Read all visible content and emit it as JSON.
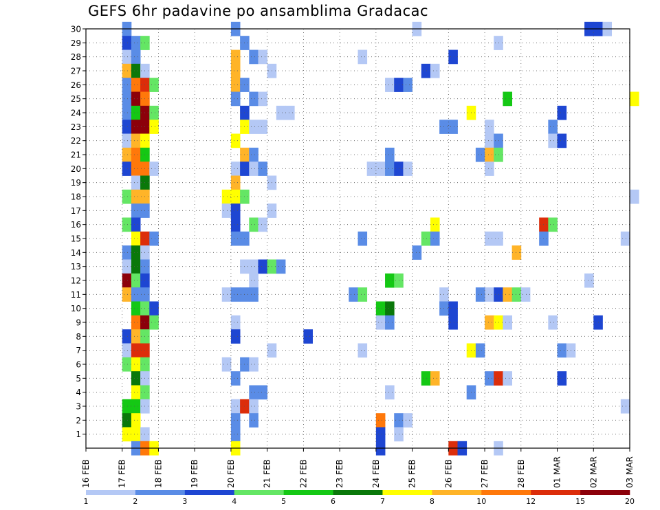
{
  "chart_data": {
    "type": "heatmap",
    "title": "GEFS 6hr padavine po ansamblima Gradacac",
    "xlabel": "",
    "ylabel": "",
    "x_tick_labels": [
      "16 FEB",
      "17 FEB",
      "18 FEB",
      "19 FEB",
      "20 FEB",
      "21 FEB",
      "22 FEB",
      "23 FEB",
      "24 FEB",
      "25 FEB",
      "26 FEB",
      "27 FEB",
      "28 FEB",
      "01 MAR",
      "02 MAR",
      "03 MAR"
    ],
    "x_range_days": [
      0,
      15
    ],
    "y_tick_labels": [
      "1",
      "2",
      "3",
      "4",
      "5",
      "6",
      "7",
      "8",
      "9",
      "10",
      "11",
      "12",
      "13",
      "14",
      "15",
      "16",
      "17",
      "18",
      "19",
      "20",
      "21",
      "22",
      "23",
      "24",
      "25",
      "26",
      "27",
      "28",
      "29",
      "30"
    ],
    "y_range_members": [
      0,
      30
    ],
    "grid": true,
    "colorbar": {
      "labels": [
        "1",
        "2",
        "3",
        "4",
        "5",
        "6",
        "7",
        "8",
        "10",
        "12",
        "15",
        "20"
      ],
      "colors": [
        "#b4c8f5",
        "#5a8ce6",
        "#1e46d2",
        "#64e664",
        "#14c814",
        "#0a780a",
        "#ffff00",
        "#ffb428",
        "#ff780a",
        "#dc2d0a",
        "#8c000a"
      ]
    },
    "cells": [
      [
        1.0,
        30,
        1
      ],
      [
        1.0,
        29,
        2
      ],
      [
        1.25,
        29,
        1
      ],
      [
        1.5,
        29,
        3
      ],
      [
        1.0,
        28,
        0
      ],
      [
        1.25,
        28,
        1
      ],
      [
        1.0,
        27,
        7
      ],
      [
        1.25,
        27,
        5
      ],
      [
        1.5,
        27,
        0
      ],
      [
        1.0,
        26,
        1
      ],
      [
        1.25,
        26,
        8
      ],
      [
        1.5,
        26,
        9
      ],
      [
        1.75,
        26,
        3
      ],
      [
        1.0,
        25,
        1
      ],
      [
        1.25,
        25,
        10
      ],
      [
        1.5,
        25,
        8
      ],
      [
        1.0,
        24,
        1
      ],
      [
        1.25,
        24,
        4
      ],
      [
        1.5,
        24,
        10
      ],
      [
        1.75,
        24,
        3
      ],
      [
        1.0,
        23,
        2
      ],
      [
        1.25,
        23,
        10
      ],
      [
        1.5,
        23,
        10
      ],
      [
        1.75,
        23,
        6
      ],
      [
        1.0,
        22,
        0
      ],
      [
        1.25,
        22,
        7
      ],
      [
        1.5,
        22,
        6
      ],
      [
        1.0,
        21,
        7
      ],
      [
        1.25,
        21,
        8
      ],
      [
        1.5,
        21,
        4
      ],
      [
        1.0,
        20,
        2
      ],
      [
        1.25,
        20,
        8
      ],
      [
        1.5,
        20,
        8
      ],
      [
        1.75,
        20,
        0
      ],
      [
        1.25,
        19,
        0
      ],
      [
        1.5,
        19,
        5
      ],
      [
        1.0,
        18,
        3
      ],
      [
        1.25,
        18,
        7
      ],
      [
        1.5,
        18,
        7
      ],
      [
        1.25,
        17,
        1
      ],
      [
        1.5,
        17,
        1
      ],
      [
        1.0,
        16,
        3
      ],
      [
        1.25,
        16,
        2
      ],
      [
        1.25,
        15,
        6
      ],
      [
        1.5,
        15,
        9
      ],
      [
        1.75,
        15,
        1
      ],
      [
        1.0,
        14,
        1
      ],
      [
        1.25,
        14,
        5
      ],
      [
        1.5,
        14,
        0
      ],
      [
        1.0,
        13,
        0
      ],
      [
        1.25,
        13,
        5
      ],
      [
        1.5,
        13,
        1
      ],
      [
        1.0,
        12,
        10
      ],
      [
        1.25,
        12,
        3
      ],
      [
        1.5,
        12,
        2
      ],
      [
        1.0,
        11,
        7
      ],
      [
        1.25,
        11,
        1
      ],
      [
        1.5,
        11,
        1
      ],
      [
        1.25,
        10,
        4
      ],
      [
        1.5,
        10,
        3
      ],
      [
        1.75,
        10,
        2
      ],
      [
        1.25,
        9,
        8
      ],
      [
        1.5,
        9,
        10
      ],
      [
        1.75,
        9,
        3
      ],
      [
        1.0,
        8,
        2
      ],
      [
        1.25,
        8,
        7
      ],
      [
        1.5,
        8,
        3
      ],
      [
        1.0,
        7,
        0
      ],
      [
        1.25,
        7,
        9
      ],
      [
        1.5,
        7,
        9
      ],
      [
        1.0,
        6,
        3
      ],
      [
        1.25,
        6,
        6
      ],
      [
        1.5,
        6,
        3
      ],
      [
        1.25,
        5,
        5
      ],
      [
        1.5,
        5,
        0
      ],
      [
        1.25,
        4,
        6
      ],
      [
        1.5,
        4,
        3
      ],
      [
        1.0,
        3,
        4
      ],
      [
        1.25,
        3,
        4
      ],
      [
        1.5,
        3,
        0
      ],
      [
        1.0,
        2,
        5
      ],
      [
        1.25,
        2,
        6
      ],
      [
        1.0,
        1,
        6
      ],
      [
        1.25,
        1,
        6
      ],
      [
        1.5,
        1,
        0
      ],
      [
        1.25,
        0,
        1
      ],
      [
        1.5,
        0,
        8
      ],
      [
        1.75,
        0,
        6
      ],
      [
        4.0,
        30,
        1
      ],
      [
        4.25,
        29,
        1
      ],
      [
        4.0,
        28,
        7
      ],
      [
        4.5,
        28,
        1
      ],
      [
        4.75,
        28,
        0
      ],
      [
        4.0,
        27,
        7
      ],
      [
        5.0,
        27,
        0
      ],
      [
        4.0,
        26,
        7
      ],
      [
        4.25,
        26,
        1
      ],
      [
        4.0,
        25,
        1
      ],
      [
        4.5,
        25,
        1
      ],
      [
        4.75,
        25,
        0
      ],
      [
        4.25,
        24,
        2
      ],
      [
        5.25,
        24,
        0
      ],
      [
        5.5,
        24,
        0
      ],
      [
        4.25,
        23,
        6
      ],
      [
        4.5,
        23,
        0
      ],
      [
        4.75,
        23,
        0
      ],
      [
        4.0,
        22,
        6
      ],
      [
        4.25,
        21,
        7
      ],
      [
        4.5,
        21,
        1
      ],
      [
        4.0,
        20,
        0
      ],
      [
        4.25,
        20,
        2
      ],
      [
        4.5,
        20,
        0
      ],
      [
        4.75,
        20,
        1
      ],
      [
        4.0,
        19,
        7
      ],
      [
        5.0,
        19,
        0
      ],
      [
        3.75,
        18,
        6
      ],
      [
        4.0,
        18,
        6
      ],
      [
        4.25,
        18,
        3
      ],
      [
        3.75,
        17,
        0
      ],
      [
        4.0,
        17,
        2
      ],
      [
        5.0,
        17,
        0
      ],
      [
        4.0,
        16,
        2
      ],
      [
        4.5,
        16,
        3
      ],
      [
        4.75,
        16,
        0
      ],
      [
        4.0,
        15,
        1
      ],
      [
        4.25,
        15,
        1
      ],
      [
        4.25,
        13,
        0
      ],
      [
        4.5,
        13,
        0
      ],
      [
        4.75,
        13,
        2
      ],
      [
        5.0,
        13,
        3
      ],
      [
        5.25,
        13,
        1
      ],
      [
        4.5,
        12,
        0
      ],
      [
        3.75,
        11,
        0
      ],
      [
        4.0,
        11,
        1
      ],
      [
        4.25,
        11,
        1
      ],
      [
        4.5,
        11,
        1
      ],
      [
        4.0,
        9,
        0
      ],
      [
        4.0,
        8,
        2
      ],
      [
        5.0,
        7,
        0
      ],
      [
        3.75,
        6,
        0
      ],
      [
        4.25,
        6,
        1
      ],
      [
        4.5,
        6,
        0
      ],
      [
        4.0,
        5,
        1
      ],
      [
        4.5,
        4,
        1
      ],
      [
        4.75,
        4,
        1
      ],
      [
        4.0,
        3,
        0
      ],
      [
        4.25,
        3,
        9
      ],
      [
        4.5,
        3,
        0
      ],
      [
        4.0,
        2,
        1
      ],
      [
        4.5,
        2,
        1
      ],
      [
        4.0,
        1,
        1
      ],
      [
        4.0,
        0,
        6
      ],
      [
        9.0,
        30,
        0
      ],
      [
        7.5,
        28,
        0
      ],
      [
        8.25,
        26,
        0
      ],
      [
        8.5,
        26,
        2
      ],
      [
        8.75,
        26,
        1
      ],
      [
        7.75,
        20,
        0
      ],
      [
        8.0,
        20,
        0
      ],
      [
        8.25,
        20,
        1
      ],
      [
        8.5,
        20,
        2
      ],
      [
        8.75,
        20,
        0
      ],
      [
        8.25,
        21,
        1
      ],
      [
        7.5,
        15,
        1
      ],
      [
        7.25,
        11,
        1
      ],
      [
        7.5,
        11,
        3
      ],
      [
        8.25,
        12,
        4
      ],
      [
        8.5,
        12,
        3
      ],
      [
        8.0,
        10,
        4
      ],
      [
        8.25,
        10,
        5
      ],
      [
        8.0,
        9,
        0
      ],
      [
        8.25,
        9,
        1
      ],
      [
        6.0,
        8,
        2
      ],
      [
        7.5,
        7,
        0
      ],
      [
        8.25,
        4,
        0
      ],
      [
        8.0,
        2,
        8
      ],
      [
        8.5,
        2,
        1
      ],
      [
        8.75,
        2,
        0
      ],
      [
        8.0,
        1,
        2
      ],
      [
        8.5,
        1,
        0
      ],
      [
        8.0,
        0,
        2
      ],
      [
        10.0,
        28,
        2
      ],
      [
        9.25,
        27,
        2
      ],
      [
        9.5,
        27,
        0
      ],
      [
        10.5,
        24,
        6
      ],
      [
        9.75,
        23,
        1
      ],
      [
        10.0,
        23,
        1
      ],
      [
        9.5,
        16,
        6
      ],
      [
        9.25,
        15,
        3
      ],
      [
        9.5,
        15,
        1
      ],
      [
        9.0,
        14,
        1
      ],
      [
        9.75,
        11,
        0
      ],
      [
        9.75,
        10,
        1
      ],
      [
        10.0,
        10,
        2
      ],
      [
        10.0,
        9,
        2
      ],
      [
        9.25,
        5,
        4
      ],
      [
        9.5,
        5,
        7
      ],
      [
        10.5,
        7,
        6
      ],
      [
        10.75,
        7,
        1
      ],
      [
        10.5,
        4,
        1
      ],
      [
        10.0,
        0,
        9
      ],
      [
        10.25,
        0,
        2
      ],
      [
        11.25,
        29,
        0
      ],
      [
        11.5,
        25,
        4
      ],
      [
        11.0,
        23,
        0
      ],
      [
        11.0,
        22,
        0
      ],
      [
        11.25,
        22,
        1
      ],
      [
        10.75,
        21,
        1
      ],
      [
        11.0,
        21,
        7
      ],
      [
        11.25,
        21,
        3
      ],
      [
        11.0,
        20,
        0
      ],
      [
        11.0,
        15,
        0
      ],
      [
        11.25,
        15,
        0
      ],
      [
        11.75,
        14,
        7
      ],
      [
        11.0,
        11,
        0
      ],
      [
        10.75,
        11,
        1
      ],
      [
        11.25,
        11,
        2
      ],
      [
        11.5,
        11,
        7
      ],
      [
        11.75,
        11,
        3
      ],
      [
        12.0,
        11,
        0
      ],
      [
        11.0,
        9,
        7
      ],
      [
        11.25,
        9,
        6
      ],
      [
        11.5,
        9,
        0
      ],
      [
        11.0,
        5,
        1
      ],
      [
        11.25,
        5,
        9
      ],
      [
        11.5,
        5,
        0
      ],
      [
        11.25,
        0,
        0
      ],
      [
        13.0,
        24,
        2
      ],
      [
        12.75,
        23,
        1
      ],
      [
        12.75,
        22,
        0
      ],
      [
        13.0,
        22,
        2
      ],
      [
        12.5,
        16,
        9
      ],
      [
        12.75,
        16,
        3
      ],
      [
        12.5,
        15,
        1
      ],
      [
        12.75,
        9,
        0
      ],
      [
        13.0,
        7,
        1
      ],
      [
        13.25,
        7,
        0
      ],
      [
        13.0,
        5,
        2
      ],
      [
        13.75,
        12,
        0
      ],
      [
        13.75,
        30,
        2
      ],
      [
        14.0,
        30,
        2
      ],
      [
        14.25,
        30,
        0
      ],
      [
        14.0,
        9,
        2
      ],
      [
        15.0,
        25,
        6
      ],
      [
        15.0,
        18,
        0
      ],
      [
        14.75,
        15,
        0
      ],
      [
        14.75,
        3,
        0
      ]
    ]
  }
}
